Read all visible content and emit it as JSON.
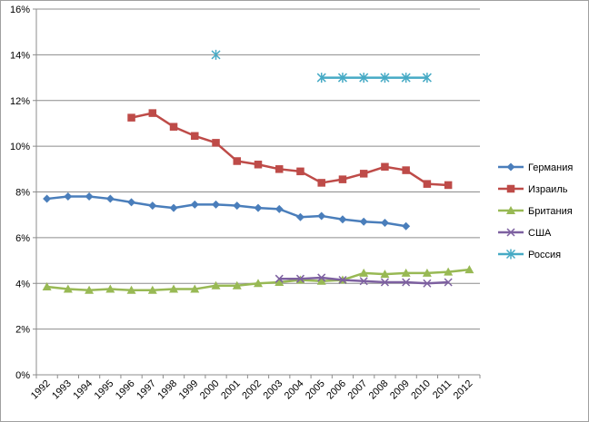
{
  "chart_data": {
    "type": "line",
    "x": [
      "1992",
      "1993",
      "1994",
      "1995",
      "1996",
      "1997",
      "1998",
      "1999",
      "2000",
      "2001",
      "2002",
      "2003",
      "2004",
      "2005",
      "2006",
      "2007",
      "2008",
      "2009",
      "2010",
      "2011",
      "2012"
    ],
    "ylim": [
      0,
      16
    ],
    "ytick_labels": [
      "0%",
      "2%",
      "4%",
      "6%",
      "8%",
      "10%",
      "12%",
      "14%",
      "16%"
    ],
    "grid": true,
    "legend": "right",
    "series": [
      {
        "name": "Германия",
        "color": "#4a7ebb",
        "marker": "diamond",
        "values": [
          7.7,
          7.8,
          7.8,
          7.7,
          7.55,
          7.4,
          7.3,
          7.45,
          7.45,
          7.4,
          7.3,
          7.25,
          6.9,
          6.95,
          6.8,
          6.7,
          6.65,
          6.5,
          null,
          null,
          null
        ]
      },
      {
        "name": "Израиль",
        "color": "#be4b48",
        "marker": "square",
        "values": [
          null,
          null,
          null,
          null,
          11.25,
          11.45,
          10.85,
          10.45,
          10.15,
          9.35,
          9.2,
          9.0,
          8.9,
          8.4,
          8.55,
          8.8,
          9.1,
          8.95,
          8.35,
          8.3,
          null
        ]
      },
      {
        "name": "Британия",
        "color": "#98b954",
        "marker": "triangle",
        "values": [
          3.85,
          3.75,
          3.7,
          3.75,
          3.7,
          3.7,
          3.75,
          3.75,
          3.9,
          3.9,
          4.0,
          4.05,
          4.15,
          4.1,
          4.15,
          4.45,
          4.4,
          4.45,
          4.45,
          4.5,
          4.6
        ]
      },
      {
        "name": "США",
        "color": "#7d60a0",
        "marker": "x",
        "values": [
          null,
          null,
          null,
          null,
          null,
          null,
          null,
          null,
          null,
          null,
          null,
          4.2,
          4.2,
          4.25,
          4.15,
          4.1,
          4.05,
          4.05,
          4.0,
          4.05,
          null
        ]
      },
      {
        "name": "Россия",
        "color": "#46aac5",
        "marker": "star",
        "values": [
          null,
          null,
          null,
          null,
          null,
          null,
          null,
          null,
          14.0,
          null,
          null,
          null,
          null,
          13.0,
          13.0,
          13.0,
          13.0,
          13.0,
          13.0,
          null,
          null
        ]
      }
    ]
  }
}
